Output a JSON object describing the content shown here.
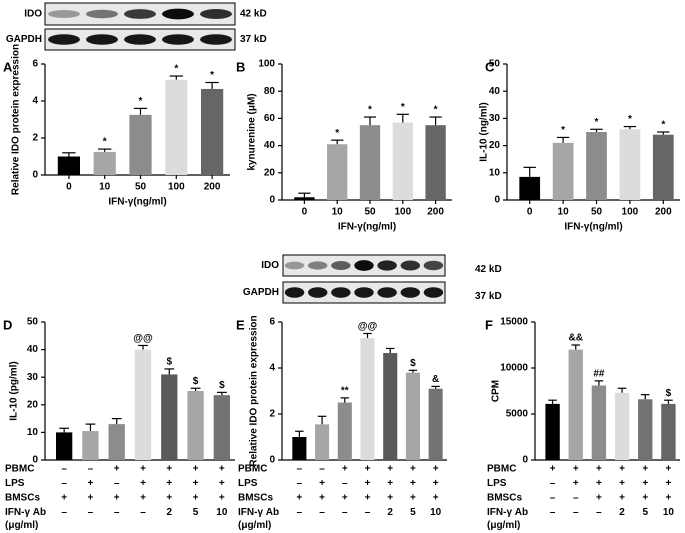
{
  "blots": [
    {
      "labels": [
        "IDO",
        "GAPDH"
      ],
      "sizes": [
        "42 kD",
        "37 kD"
      ]
    },
    {
      "labels": [
        "IDO",
        "GAPDH"
      ],
      "sizes": [
        "42 kD",
        "37 kD"
      ]
    }
  ],
  "chart_data": [
    {
      "type": "bar",
      "panel": "A",
      "ylabel": "Relative IDO protein expression",
      "xlabel": "IFN-γ(ng/ml)",
      "categories": [
        "0",
        "10",
        "50",
        "100",
        "200"
      ],
      "values": [
        1.0,
        1.25,
        3.25,
        5.15,
        4.65
      ],
      "errors": [
        0.2,
        0.15,
        0.35,
        0.2,
        0.35
      ],
      "annotations": [
        null,
        "*",
        "*",
        "*",
        "*"
      ],
      "colors": [
        "#000000",
        "#a6a6a6",
        "#8c8c8c",
        "#dcdcdc",
        "#666666"
      ],
      "ylim": [
        0,
        6
      ],
      "yticks": [
        0,
        2,
        4,
        6
      ]
    },
    {
      "type": "bar",
      "panel": "B",
      "ylabel": "kynurenine (μM)",
      "xlabel": "IFN-γ(ng/ml)",
      "categories": [
        "0",
        "10",
        "50",
        "100",
        "200"
      ],
      "values": [
        2,
        41,
        55,
        57,
        55
      ],
      "errors": [
        3,
        3,
        6,
        6,
        6
      ],
      "annotations": [
        null,
        "*",
        "*",
        "*",
        "*"
      ],
      "colors": [
        "#000000",
        "#a6a6a6",
        "#8c8c8c",
        "#dcdcdc",
        "#666666"
      ],
      "ylim": [
        0,
        100
      ],
      "yticks": [
        0,
        20,
        40,
        60,
        80,
        100
      ]
    },
    {
      "type": "bar",
      "panel": "C",
      "ylabel": "IL-10 (ng/ml)",
      "xlabel": "IFN-γ(ng/ml)",
      "categories": [
        "0",
        "10",
        "50",
        "100",
        "200"
      ],
      "values": [
        8.5,
        21,
        25,
        26,
        24
      ],
      "errors": [
        3.5,
        2,
        1,
        1,
        1
      ],
      "annotations": [
        null,
        "*",
        "*",
        "*",
        "*"
      ],
      "colors": [
        "#000000",
        "#a6a6a6",
        "#8c8c8c",
        "#dcdcdc",
        "#666666"
      ],
      "ylim": [
        0,
        50
      ],
      "yticks": [
        0,
        10,
        20,
        30,
        40,
        50
      ]
    },
    {
      "type": "bar",
      "panel": "D",
      "ylabel": "IL-10 (pg/ml)",
      "values": [
        10,
        10.5,
        13,
        40,
        31,
        25,
        23.5
      ],
      "errors": [
        1.5,
        2.5,
        2,
        1.5,
        2,
        1,
        1
      ],
      "annotations": [
        null,
        null,
        null,
        "@@",
        "$",
        "$",
        "$"
      ],
      "colors": [
        "#000000",
        "#a6a6a6",
        "#8c8c8c",
        "#dcdcdc",
        "#595959",
        "#a6a6a6",
        "#737373"
      ],
      "ylim": [
        0,
        50
      ],
      "yticks": [
        0,
        10,
        20,
        30,
        40,
        50
      ],
      "conditions": [
        {
          "name": "PBMC",
          "values": [
            "–",
            "–",
            "+",
            "+",
            "+",
            "+",
            "+"
          ]
        },
        {
          "name": "LPS",
          "values": [
            "–",
            "+",
            "–",
            "+",
            "+",
            "+",
            "+"
          ]
        },
        {
          "name": "BMSCs",
          "values": [
            "+",
            "+",
            "+",
            "+",
            "+",
            "+",
            "+"
          ]
        },
        {
          "name": "IFN-γ Ab",
          "unit": "(μg/ml)",
          "values": [
            "–",
            "–",
            "–",
            "–",
            "2",
            "5",
            "10"
          ]
        }
      ]
    },
    {
      "type": "bar",
      "panel": "E",
      "ylabel": "Relative IDO protein expression",
      "values": [
        1.0,
        1.55,
        2.5,
        5.3,
        4.65,
        3.8,
        3.1
      ],
      "errors": [
        0.25,
        0.35,
        0.2,
        0.2,
        0.2,
        0.1,
        0.1
      ],
      "annotations": [
        null,
        null,
        "**",
        "@@",
        null,
        "$",
        "&"
      ],
      "colors": [
        "#000000",
        "#a6a6a6",
        "#8c8c8c",
        "#dcdcdc",
        "#595959",
        "#a6a6a6",
        "#737373"
      ],
      "ylim": [
        0,
        6
      ],
      "yticks": [
        0,
        2,
        4,
        6
      ],
      "conditions": [
        {
          "name": "PBMC",
          "values": [
            "–",
            "–",
            "+",
            "+",
            "+",
            "+",
            "+"
          ]
        },
        {
          "name": "LPS",
          "values": [
            "–",
            "+",
            "–",
            "+",
            "+",
            "+",
            "+"
          ]
        },
        {
          "name": "BMSCs",
          "values": [
            "+",
            "+",
            "+",
            "+",
            "+",
            "+",
            "+"
          ]
        },
        {
          "name": "IFN-γ Ab",
          "unit": "(μg/ml)",
          "values": [
            "–",
            "–",
            "–",
            "–",
            "2",
            "5",
            "10"
          ]
        }
      ]
    },
    {
      "type": "bar",
      "panel": "F",
      "ylabel": "CPM",
      "values": [
        6100,
        12000,
        8100,
        7300,
        6600,
        6100
      ],
      "errors": [
        400,
        500,
        500,
        500,
        500,
        400
      ],
      "annotations": [
        null,
        "&&",
        "##",
        null,
        null,
        "$"
      ],
      "colors": [
        "#000000",
        "#a6a6a6",
        "#8c8c8c",
        "#dcdcdc",
        "#737373",
        "#666666"
      ],
      "ylim": [
        0,
        15000
      ],
      "yticks": [
        0,
        5000,
        10000,
        15000
      ],
      "conditions": [
        {
          "name": "PBMC",
          "values": [
            "+",
            "+",
            "+",
            "+",
            "+",
            "+"
          ]
        },
        {
          "name": "LPS",
          "values": [
            "–",
            "+",
            "+",
            "+",
            "+",
            "+"
          ]
        },
        {
          "name": "BMSCs",
          "values": [
            "–",
            "–",
            "+",
            "+",
            "+",
            "+"
          ]
        },
        {
          "name": "IFN-γ Ab",
          "unit": "(μg/ml)",
          "values": [
            "–",
            "–",
            "–",
            "2",
            "5",
            "10"
          ]
        }
      ]
    }
  ]
}
